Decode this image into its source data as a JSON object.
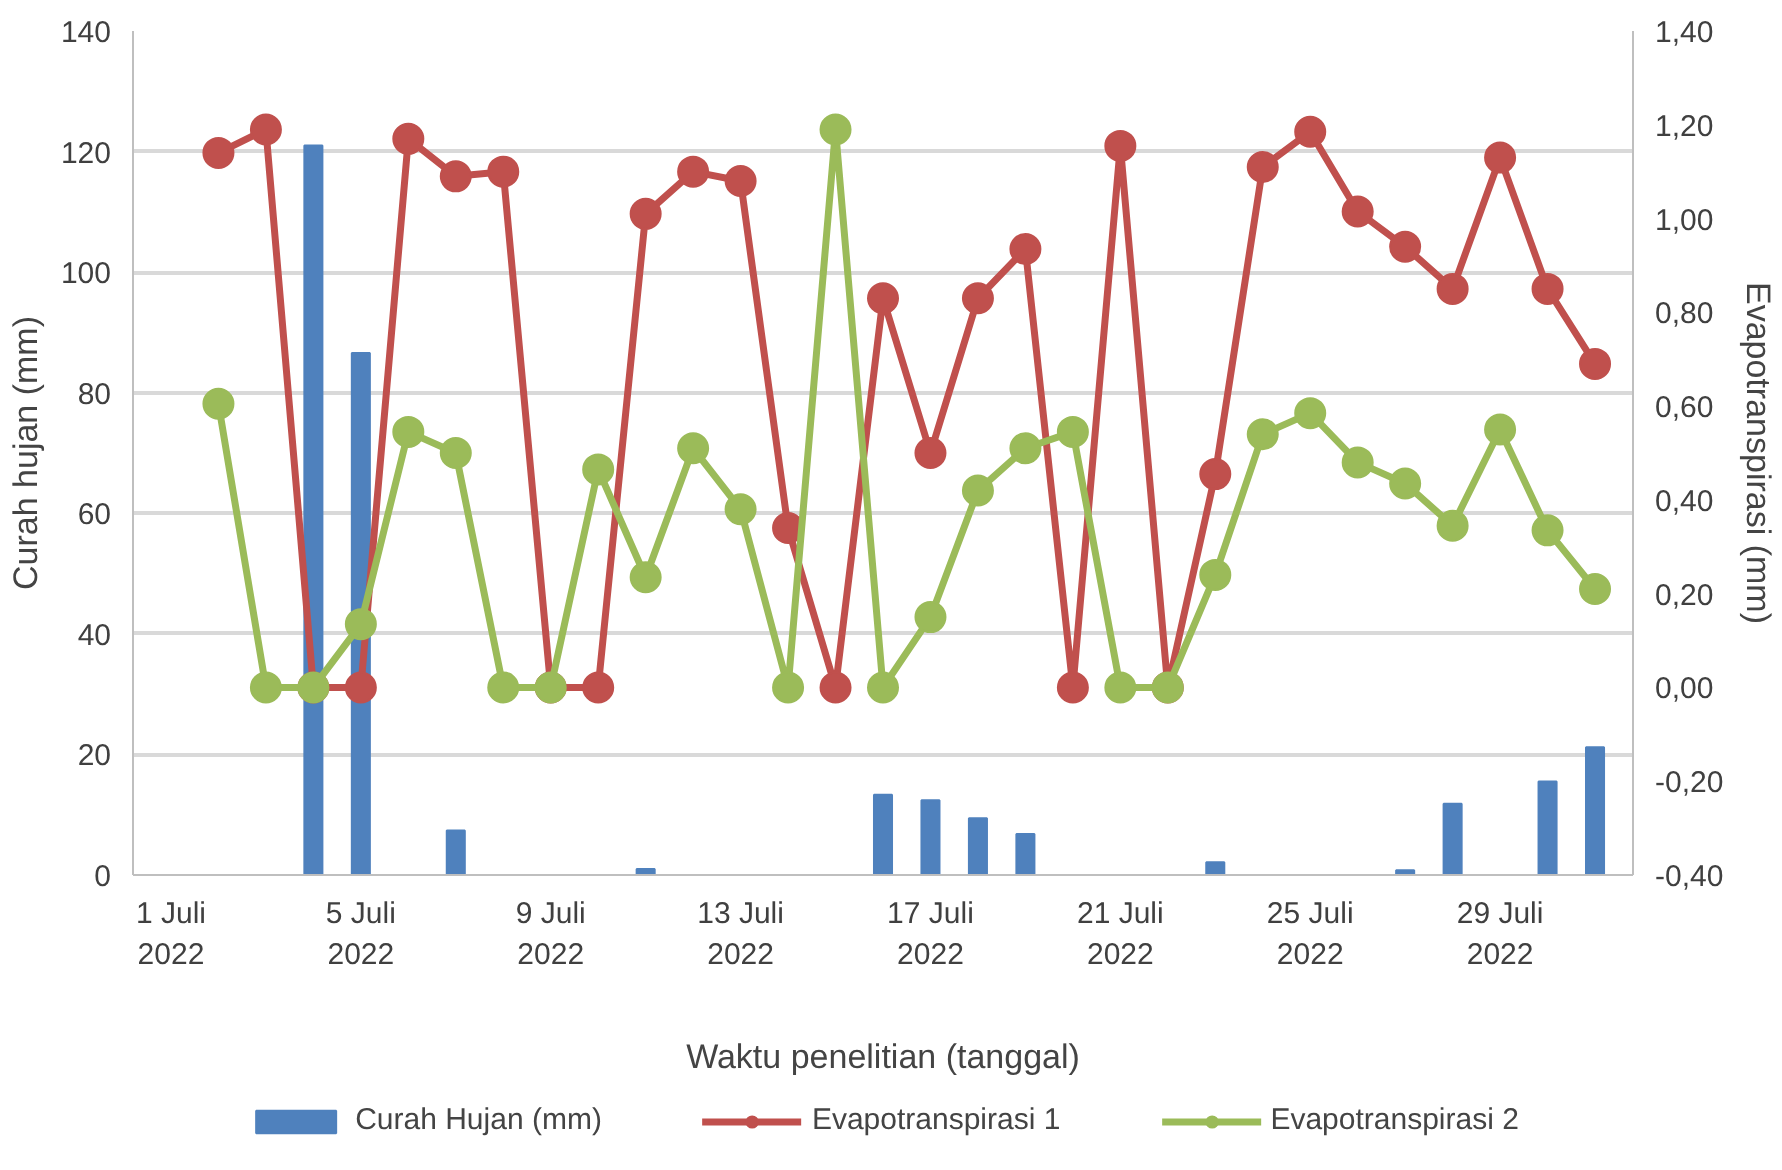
{
  "chart_data": {
    "type": "bar",
    "xlabel": "Waktu penelitian (tanggal)",
    "ylabel": "Curah hujan (mm)",
    "y2label": "Evapotranspirasi (mm)",
    "categories": [
      "1 Juli 2022",
      null,
      null,
      null,
      "5 Juli 2022",
      null,
      null,
      null,
      "9 Juli 2022",
      null,
      null,
      null,
      "13 Juli 2022",
      null,
      null,
      null,
      "17 Juli 2022",
      null,
      null,
      null,
      "21 Juli 2022",
      null,
      null,
      null,
      "25 Juli 2022",
      null,
      null,
      null,
      "29 Juli 2022",
      null,
      null
    ],
    "series": [
      {
        "name": "Curah Hujan (mm)",
        "color": "#4f81bd",
        "values": [
          0,
          0,
          0,
          121,
          86.6,
          0,
          7.4,
          0,
          0,
          0,
          1,
          0,
          0,
          0,
          0,
          13.3,
          12.4,
          9.4,
          6.8,
          0,
          0,
          0,
          2.1,
          0,
          0,
          0,
          0.8,
          11.8,
          0,
          15.5,
          21.2
        ]
      },
      {
        "name": "Evapotranspirasi 1",
        "type": "line",
        "axis": "y2",
        "color": "#c0504d",
        "values": [
          null,
          1.14,
          1.19,
          0.0,
          0.0,
          1.17,
          1.09,
          1.1,
          0.0,
          0.0,
          1.01,
          1.1,
          1.08,
          0.34,
          0.0,
          0.83,
          0.5,
          0.83,
          0.935,
          0.0,
          1.155,
          0.0,
          0.455,
          1.11,
          1.185,
          1.015,
          0.94,
          0.85,
          1.13,
          0.85,
          0.69
        ]
      },
      {
        "name": "Evapotranspirasi 2",
        "type": "line",
        "axis": "y2",
        "color": "#9bbb59",
        "values": [
          null,
          0.605,
          0.0,
          0.0,
          0.135,
          0.545,
          0.5,
          0.0,
          0.0,
          0.465,
          0.235,
          0.51,
          0.38,
          0.0,
          1.19,
          0.0,
          0.15,
          0.42,
          0.51,
          0.545,
          0.0,
          0.0,
          0.24,
          0.54,
          0.585,
          0.48,
          0.435,
          0.345,
          0.55,
          0.335,
          0.21
        ]
      }
    ],
    "ylim": [
      0,
      140
    ],
    "yticks": [
      0,
      20,
      40,
      60,
      80,
      100,
      120,
      140
    ],
    "y2lim": [
      -0.4,
      1.4
    ],
    "y2ticks": [
      {
        "value": -0.4,
        "label": "-0,40"
      },
      {
        "value": -0.2,
        "label": "-0,20"
      },
      {
        "value": 0,
        "label": "0,00"
      },
      {
        "value": 0.2,
        "label": "0,20"
      },
      {
        "value": 0.4,
        "label": "0,40"
      },
      {
        "value": 0.6,
        "label": "0,60"
      },
      {
        "value": 0.8,
        "label": "0,80"
      },
      {
        "value": 1.0,
        "label": "1,00"
      },
      {
        "value": 1.2,
        "label": "1,20"
      },
      {
        "value": 1.4,
        "label": "1,40"
      }
    ],
    "grid": "y",
    "legend": "bottom",
    "marker": "circle",
    "line_style": "solid"
  }
}
